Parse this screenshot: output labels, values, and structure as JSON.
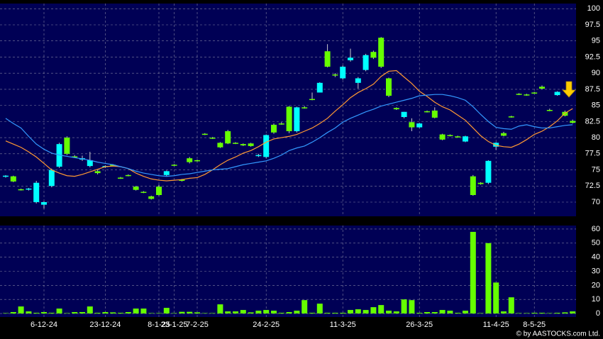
{
  "chart_data": [
    {
      "type": "candlestick",
      "categories": [
        null,
        null,
        null,
        null,
        null,
        "6-12-24",
        null,
        null,
        null,
        null,
        null,
        null,
        null,
        "23-12-24",
        null,
        null,
        null,
        null,
        null,
        null,
        "8-1-25",
        null,
        "23-1-25",
        null,
        null,
        "7-2-25",
        null,
        null,
        null,
        null,
        null,
        null,
        null,
        null,
        "24-2-25",
        null,
        null,
        null,
        null,
        null,
        null,
        null,
        null,
        null,
        "11-3-25",
        null,
        null,
        null,
        null,
        null,
        null,
        null,
        null,
        null,
        "26-3-25",
        null,
        null,
        null,
        null,
        null,
        null,
        null,
        null,
        null,
        "11-4-25",
        null,
        null,
        null,
        null,
        "8-5-25",
        null,
        null,
        null,
        null,
        null
      ],
      "open": [
        74.0,
        74.0,
        72.0,
        72.0,
        70.0,
        69.6,
        72.5,
        75.5,
        80.0,
        77.1,
        76.6,
        75.6,
        74.8,
        75.5,
        75.8,
        73.8,
        74.2,
        72.4,
        71.6,
        70.9,
        72.4,
        74.2,
        75.8,
        73.5,
        76.8,
        76.5,
        80.6,
        80.0,
        79.2,
        81.0,
        79.2,
        79.0,
        79.1,
        77.2,
        77.0,
        82.0,
        82.2,
        84.8,
        81.0,
        84.7,
        86.0,
        87.0,
        93.4,
        89.8,
        89.2,
        92.0,
        88.5,
        90.5,
        93.3,
        95.5,
        89.2,
        84.6,
        83.2,
        82.4,
        81.6,
        84.1,
        84.2,
        80.5,
        80.4,
        80.2,
        79.4,
        74.0,
        73.0,
        73.0,
        78.6,
        80.7,
        83.3,
        86.8,
        86.7,
        87.0,
        87.9,
        84.3,
        86.6,
        84.0,
        82.6
      ],
      "high": [
        74.2,
        74.1,
        72.1,
        72.2,
        73.3,
        70.1,
        75.2,
        79.2,
        80.2,
        77.3,
        77.2,
        77.8,
        75.0,
        75.7,
        75.9,
        73.9,
        74.3,
        72.5,
        71.7,
        71.0,
        72.7,
        74.9,
        75.9,
        73.6,
        77.0,
        76.6,
        80.7,
        80.1,
        79.3,
        81.2,
        79.3,
        79.1,
        79.2,
        77.5,
        80.5,
        82.2,
        82.4,
        84.9,
        84.8,
        84.9,
        87.0,
        88.6,
        94.5,
        90.0,
        91.2,
        93.8,
        89.4,
        93.0,
        93.5,
        95.6,
        89.3,
        84.7,
        84.0,
        83.0,
        82.3,
        84.2,
        84.7,
        80.6,
        80.5,
        80.3,
        80.3,
        74.2,
        73.1,
        76.5,
        79.3,
        80.9,
        83.4,
        86.9,
        86.8,
        87.1,
        88.1,
        84.5,
        87.2,
        84.2,
        82.8
      ],
      "low": [
        73.8,
        73.1,
        71.8,
        71.8,
        69.8,
        69.0,
        72.3,
        75.3,
        77.3,
        76.9,
        76.4,
        75.4,
        74.3,
        75.3,
        75.6,
        73.6,
        74.0,
        71.8,
        71.4,
        70.4,
        71.0,
        74.0,
        75.6,
        73.2,
        76.0,
        76.3,
        80.4,
        79.8,
        78.4,
        79.0,
        79.0,
        78.7,
        78.6,
        77.0,
        76.8,
        80.6,
        82.0,
        80.7,
        80.8,
        84.5,
        85.8,
        87.0,
        90.9,
        89.4,
        89.0,
        91.8,
        87.6,
        90.3,
        92.2,
        90.8,
        86.3,
        84.3,
        83.0,
        81.0,
        81.5,
        83.9,
        83.0,
        79.6,
        80.2,
        80.0,
        79.3,
        71.0,
        72.7,
        72.8,
        78.1,
        80.2,
        83.1,
        86.6,
        86.5,
        86.8,
        87.5,
        84.1,
        86.5,
        83.3,
        82.2
      ],
      "close": [
        74.1,
        73.2,
        71.9,
        72.1,
        73.0,
        70.0,
        75.0,
        79.0,
        77.5,
        77.0,
        76.8,
        76.5,
        74.5,
        75.6,
        75.7,
        73.7,
        74.1,
        71.9,
        71.5,
        70.5,
        71.1,
        74.8,
        75.7,
        73.3,
        76.2,
        76.4,
        80.5,
        79.9,
        78.5,
        79.1,
        79.1,
        78.8,
        78.7,
        77.3,
        80.4,
        80.8,
        82.1,
        81.0,
        84.7,
        84.6,
        85.9,
        88.5,
        91.0,
        89.7,
        91.0,
        92.4,
        89.2,
        92.8,
        92.4,
        91.0,
        86.5,
        84.4,
        84.0,
        81.6,
        82.2,
        84.0,
        83.1,
        79.7,
        80.3,
        80.1,
        80.2,
        71.1,
        72.8,
        76.4,
        79.2,
        80.3,
        83.2,
        86.7,
        86.6,
        86.9,
        87.6,
        84.2,
        87.1,
        83.4,
        82.3
      ],
      "up_color": "#00ffff",
      "down_color": "#66ff00",
      "lines": [
        {
          "color": "#ff9933",
          "values": [
            79.5,
            79,
            78.5,
            77.8,
            77,
            76,
            75,
            74.5,
            74.1,
            74,
            74.3,
            74.7,
            75.1,
            75.5,
            75.6,
            75.5,
            75.2,
            74.5,
            74,
            73.6,
            73.4,
            73.3,
            73.4,
            73.5,
            73.7,
            73.8,
            74.3,
            75,
            75.8,
            76.5,
            77,
            77.6,
            78,
            78.6,
            79.3,
            79.8,
            80,
            80.2,
            80.5,
            81,
            81.5,
            82.2,
            83,
            84.1,
            85.1,
            86.2,
            87,
            87.6,
            88.3,
            89.5,
            90.3,
            90.4,
            89.4,
            88.4,
            87.2,
            86.4,
            85.5,
            84.8,
            84.3,
            83.5,
            82.7,
            81.5,
            80.3,
            79.4,
            78.8,
            78.6,
            78.5,
            79,
            79.7,
            80.5,
            81,
            81.7,
            82.6,
            83.8,
            84.5
          ]
        },
        {
          "color": "#3399ff",
          "values": [
            83,
            82.2,
            81.5,
            80.2,
            79,
            78.2,
            77.6,
            77.3,
            77.1,
            76.9,
            76.7,
            76.5,
            76.2,
            76,
            75.8,
            75.5,
            75.2,
            74.8,
            74.5,
            74.3,
            74.1,
            74,
            74.1,
            74.3,
            74.4,
            74.6,
            74.8,
            75,
            75.1,
            75.2,
            75.5,
            75.8,
            76,
            76.2,
            76.4,
            76.8,
            77.3,
            78,
            78.4,
            78.7,
            79.3,
            80,
            80.8,
            81.5,
            82.4,
            83,
            83.5,
            84,
            84.4,
            84.9,
            85.2,
            85.5,
            85.8,
            86.1,
            86.5,
            86.6,
            86.7,
            86.7,
            86.5,
            86.2,
            85.8,
            84.8,
            83.6,
            82.5,
            81.6,
            81.4,
            81.3,
            81.8,
            82,
            81.7,
            81.5,
            81.5,
            81.7,
            81.9,
            82
          ]
        }
      ],
      "ylim": [
        67.8,
        100.8
      ],
      "yticks": [
        70,
        72.5,
        75,
        77.5,
        80,
        82.5,
        85,
        87.5,
        90,
        92.5,
        95,
        97.5,
        100
      ],
      "grid": true
    },
    {
      "type": "bar",
      "color": "#66ff00",
      "values": [
        0.3,
        1,
        5,
        1.5,
        0.5,
        1,
        0.5,
        3.5,
        0.3,
        1,
        1,
        5,
        0.5,
        1,
        0.8,
        0.5,
        1,
        3.5,
        3.5,
        0.3,
        0.3,
        4,
        0.3,
        1.2,
        1.2,
        0.8,
        0.3,
        0.3,
        6.5,
        1.5,
        1.5,
        2.5,
        0.8,
        2,
        2.5,
        2,
        0.5,
        1,
        2,
        9.5,
        0.5,
        7,
        0.5,
        0.5,
        0.5,
        2.5,
        3,
        2.5,
        4.5,
        6,
        2,
        1.5,
        10,
        9.5,
        0.5,
        1,
        1,
        2.5,
        2,
        0.5,
        2,
        58,
        0.3,
        50,
        22,
        1.5,
        11.5,
        0.3,
        0.3,
        0.5,
        0.5,
        0.3,
        0.5,
        0.8,
        1.5
      ],
      "ylim": [
        -2.5,
        62.5
      ],
      "yticks": [
        0,
        10,
        20,
        30,
        40,
        50,
        60
      ],
      "grid": true
    }
  ],
  "copyright": "© by AASTOCKS.com Ltd."
}
